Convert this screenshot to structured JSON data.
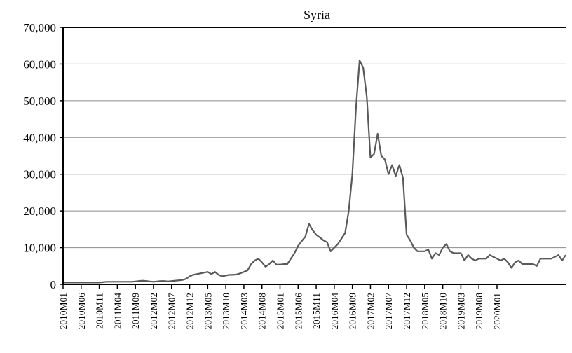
{
  "chart_data": {
    "type": "line",
    "title": "Syria",
    "xlabel": "",
    "ylabel": "",
    "ylim": [
      0,
      70000
    ],
    "y_ticks": [
      0,
      10000,
      20000,
      30000,
      40000,
      50000,
      60000,
      70000
    ],
    "y_tick_labels": [
      "0",
      "10,000",
      "20,000",
      "30,000",
      "40,000",
      "50,000",
      "60,000",
      "70,000"
    ],
    "x_tick_labels": [
      "2010M01",
      "2010M06",
      "2010M11",
      "2011M04",
      "2011M09",
      "2012M02",
      "2012M07",
      "2012M12",
      "2013M05",
      "2013M10",
      "2014M03",
      "2014M08",
      "2015M01",
      "2015M06",
      "2015M11",
      "2016M04",
      "2016M09",
      "2017M02",
      "2017M07",
      "2017M12",
      "2018M05",
      "2018M10",
      "2019M03",
      "2019M08",
      "2020M01"
    ],
    "grid": "horizontal",
    "line_color": "#595959",
    "series": [
      {
        "x_start": "2010M01",
        "frequency": "monthly",
        "values": [
          500,
          500,
          500,
          500,
          500,
          500,
          500,
          500,
          500,
          500,
          500,
          600,
          700,
          700,
          700,
          700,
          700,
          700,
          700,
          700,
          800,
          900,
          1000,
          900,
          800,
          700,
          800,
          900,
          900,
          800,
          900,
          1000,
          1100,
          1200,
          1500,
          2200,
          2600,
          2800,
          3000,
          3200,
          3400,
          2800,
          3400,
          2600,
          2200,
          2400,
          2600,
          2600,
          2700,
          3000,
          3400,
          3800,
          5500,
          6500,
          7000,
          6000,
          4800,
          5500,
          6500,
          5400,
          5400,
          5500,
          5500,
          7000,
          8500,
          10500,
          11800,
          13000,
          16500,
          14800,
          13500,
          12800,
          12000,
          11500,
          9000,
          10000,
          11000,
          12500,
          14000,
          20000,
          30000,
          48000,
          61000,
          59000,
          51000,
          34500,
          35500,
          41000,
          35000,
          34000,
          30000,
          32500,
          29500,
          32500,
          29000,
          13500,
          12000,
          10000,
          9000,
          9000,
          9000,
          9500,
          7000,
          8500,
          8000,
          10000,
          11000,
          9000,
          8500,
          8500,
          8500,
          6500,
          8000,
          7000,
          6500,
          7000,
          7000,
          7000,
          8000,
          7500,
          7000,
          6500,
          7000,
          6000,
          4500,
          6000,
          6500,
          5500,
          5500,
          5500,
          5500,
          5000,
          7000,
          7000,
          7000,
          7000,
          7500,
          8000,
          6500,
          8000
        ]
      }
    ]
  }
}
